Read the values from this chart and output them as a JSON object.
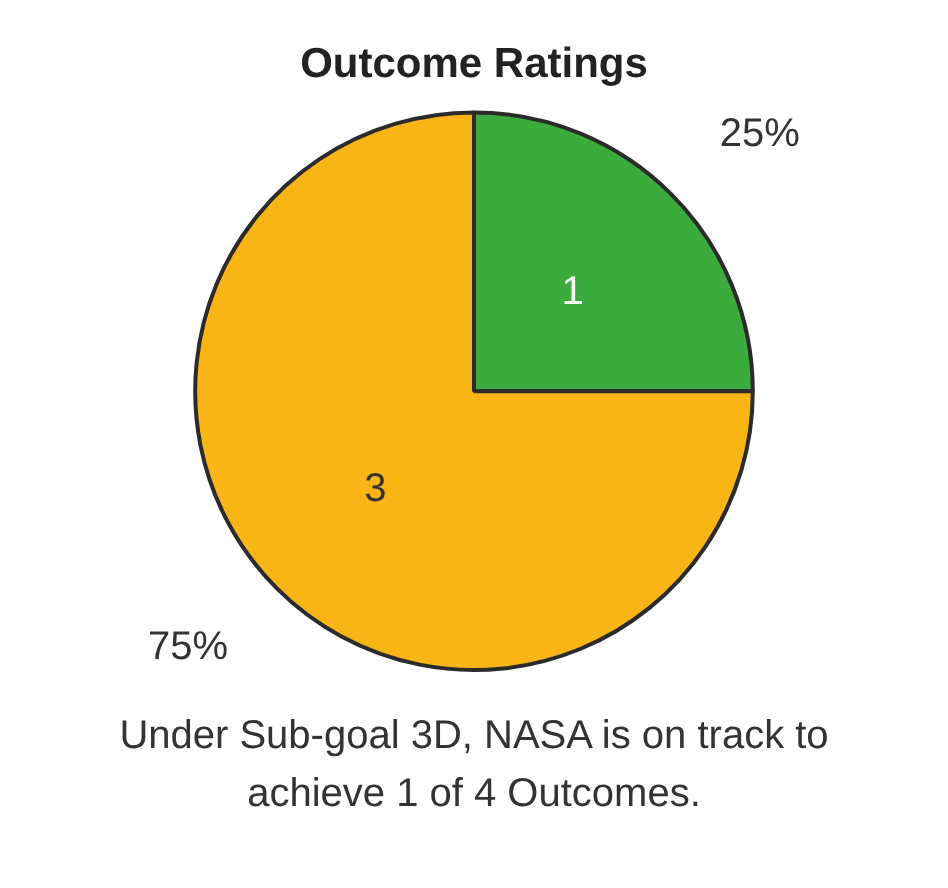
{
  "chart_data": {
    "type": "pie",
    "title": "Outcome Ratings",
    "categories": [
      "1",
      "3"
    ],
    "values": [
      25,
      75
    ],
    "colors": [
      "#3aab3c",
      "#f9b515"
    ],
    "value_labels": [
      "25%",
      "75%"
    ],
    "legend": false,
    "annotations": [
      "Under Sub-goal 3D, NASA is on track to achieve 1 of 4 Outcomes."
    ]
  }
}
